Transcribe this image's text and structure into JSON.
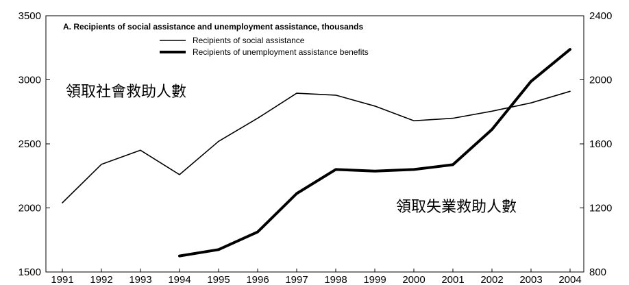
{
  "chart_data": {
    "type": "line",
    "title": "A. Recipients of social assistance and unemployment assistance, thousands",
    "x": [
      "1991",
      "1992",
      "1993",
      "1994",
      "1995",
      "1996",
      "1997",
      "1998",
      "1999",
      "2000",
      "2001",
      "2002",
      "2003",
      "2004"
    ],
    "left_axis": {
      "min": 1500,
      "max": 3500,
      "ticks": [
        "1500",
        "2000",
        "2500",
        "3000",
        "3500"
      ]
    },
    "right_axis": {
      "min": 800,
      "max": 2400,
      "ticks": [
        "800",
        "1200",
        "1600",
        "2000",
        "2400"
      ]
    },
    "series": [
      {
        "name": "Recipients of social assistance",
        "axis": "left",
        "line": "thin",
        "values": [
          2040,
          2340,
          2450,
          2260,
          2520,
          2700,
          2895,
          2880,
          2795,
          2680,
          2700,
          2755,
          2820,
          2910
        ]
      },
      {
        "name": "Recipients of unemployment assistance benefits",
        "axis": "right",
        "line": "thick",
        "values": [
          null,
          null,
          null,
          900,
          940,
          1050,
          1290,
          1440,
          1430,
          1440,
          1470,
          1690,
          1990,
          2190
        ]
      }
    ],
    "annotations": [
      "領取社會救助人數",
      "領取失業救助人數"
    ],
    "grid": false,
    "legend_position": "top-left"
  }
}
